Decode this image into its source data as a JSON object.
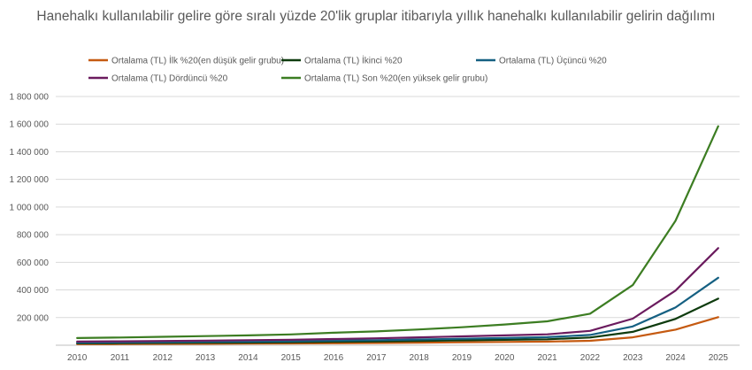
{
  "chart_data": {
    "type": "line",
    "title": "Hanehalkı kullanılabilir gelire göre sıralı yüzde 20'lik gruplar itibarıyla yıllık hanehalkı kullanılabilir gelirin dağılımı",
    "xlabel": "",
    "ylabel": "",
    "x": [
      "2010",
      "2011",
      "2012",
      "2013",
      "2014",
      "2015",
      "2016",
      "2017",
      "2018",
      "2019",
      "2020",
      "2021",
      "2022",
      "2023",
      "2024",
      "2025"
    ],
    "ylim": [
      0,
      1800000
    ],
    "yticks": [
      0,
      200000,
      400000,
      600000,
      800000,
      1000000,
      1200000,
      1400000,
      1600000,
      1800000
    ],
    "ytick_labels": [
      "",
      "200 000",
      "400 000",
      "600 000",
      "800 000",
      "1 000 000",
      "1 200 000",
      "1 400 000",
      "1 600 000",
      "1 800 000"
    ],
    "grid": true,
    "legend_position": "top",
    "series": [
      {
        "name": "Ortalama (TL) İlk %20(en düşük gelir grubu)",
        "color": "#c55a11",
        "values": [
          7500,
          8500,
          9500,
          10500,
          11500,
          12500,
          14000,
          16000,
          18500,
          21000,
          23500,
          26000,
          32000,
          57000,
          113000,
          203000
        ]
      },
      {
        "name": "Ortalama (TL) İkinci %20",
        "color": "#0e3b0e",
        "values": [
          13500,
          15000,
          16500,
          18000,
          19500,
          21500,
          24500,
          27000,
          31000,
          35000,
          39000,
          43000,
          56000,
          97000,
          190000,
          337000
        ]
      },
      {
        "name": "Ortalama (TL) Üçüncü %20",
        "color": "#156082",
        "values": [
          18500,
          20500,
          22500,
          24500,
          26500,
          29000,
          33000,
          36500,
          41500,
          47000,
          52000,
          58000,
          74000,
          136000,
          273000,
          488000
        ]
      },
      {
        "name": "Ortalama (TL) Dördüncü %20",
        "color": "#6b1b5e",
        "values": [
          26000,
          28500,
          31000,
          33500,
          36500,
          40000,
          45000,
          50000,
          57000,
          64000,
          71000,
          79000,
          104000,
          192000,
          395000,
          703000
        ]
      },
      {
        "name": "Ortalama (TL) Son %20(en yüksek gelir grubu)",
        "color": "#3c7d22",
        "values": [
          52000,
          56000,
          61000,
          66000,
          71000,
          78000,
          90000,
          100000,
          114000,
          130000,
          150000,
          173000,
          228000,
          435000,
          900000,
          1585000
        ]
      }
    ]
  }
}
